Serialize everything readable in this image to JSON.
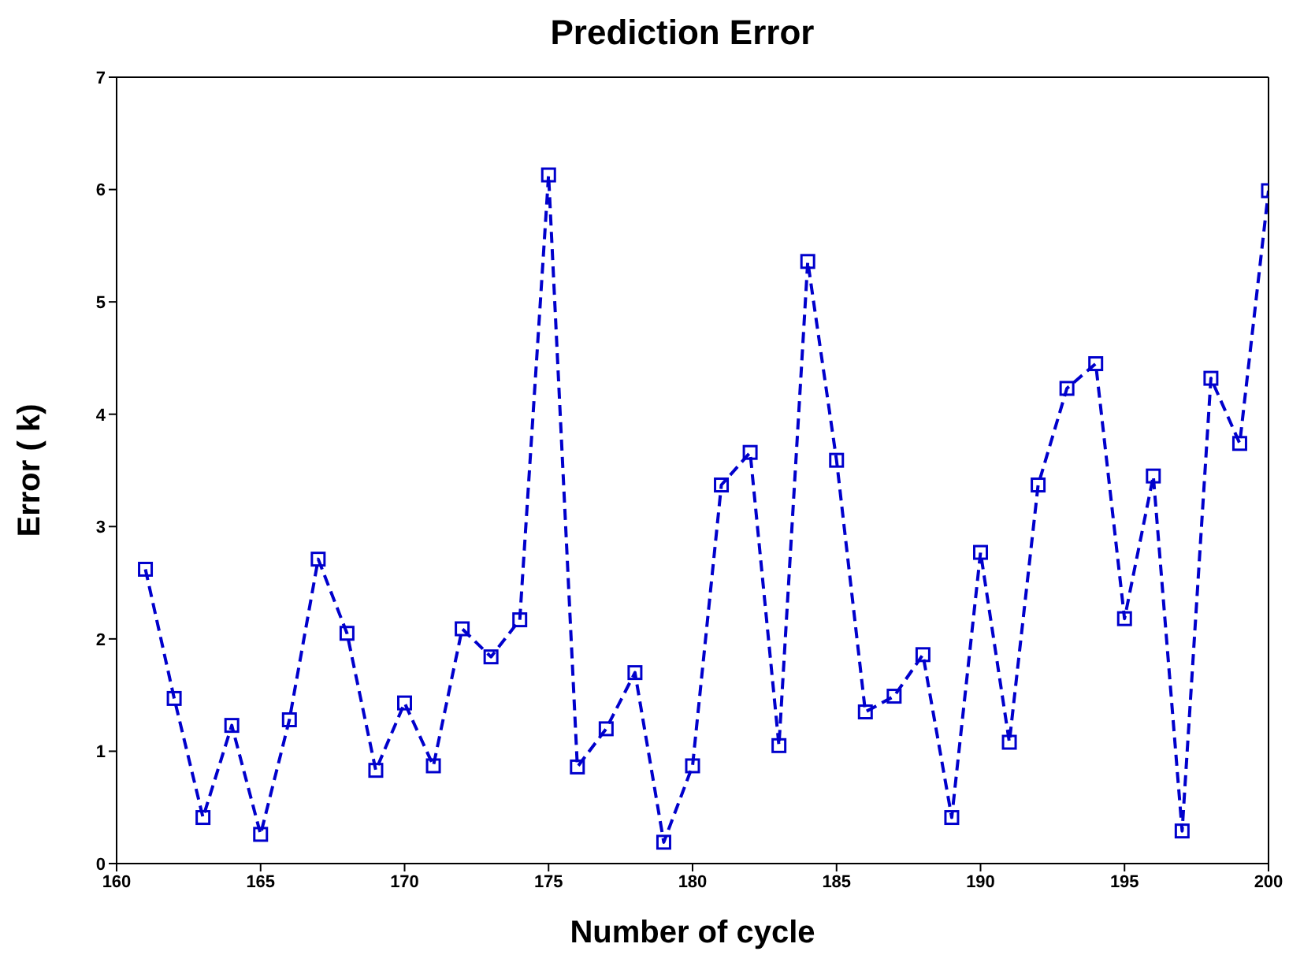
{
  "chart_data": {
    "type": "line",
    "title": "Prediction Error",
    "xlabel": "Number of cycle",
    "ylabel": "Error ( k)",
    "x": [
      161,
      162,
      163,
      164,
      165,
      166,
      167,
      168,
      169,
      170,
      171,
      172,
      173,
      174,
      175,
      176,
      177,
      178,
      179,
      180,
      181,
      182,
      183,
      184,
      185,
      186,
      187,
      188,
      189,
      190,
      191,
      192,
      193,
      194,
      195,
      196,
      197,
      198,
      199,
      200
    ],
    "series": [
      {
        "color": "#0000cc",
        "values": [
          2.62,
          1.47,
          0.41,
          1.23,
          0.26,
          1.28,
          2.71,
          2.05,
          0.83,
          1.43,
          0.87,
          2.09,
          1.84,
          2.17,
          6.13,
          0.86,
          1.2,
          1.7,
          0.19,
          0.87,
          3.37,
          3.66,
          1.05,
          5.36,
          3.59,
          1.35,
          1.49,
          1.86,
          0.41,
          2.77,
          1.08,
          3.37,
          4.23,
          4.45,
          2.18,
          3.45,
          0.29,
          4.32,
          3.74,
          5.99
        ]
      }
    ],
    "xlim": [
      160,
      200
    ],
    "xticks": [
      160,
      165,
      170,
      175,
      180,
      185,
      190,
      195,
      200
    ],
    "ylim": [
      0,
      7
    ],
    "yticks": [
      0,
      1,
      2,
      3,
      4,
      5,
      6,
      7
    ],
    "grid": false,
    "legend": false,
    "marker": "square",
    "line_style": "dashed"
  }
}
